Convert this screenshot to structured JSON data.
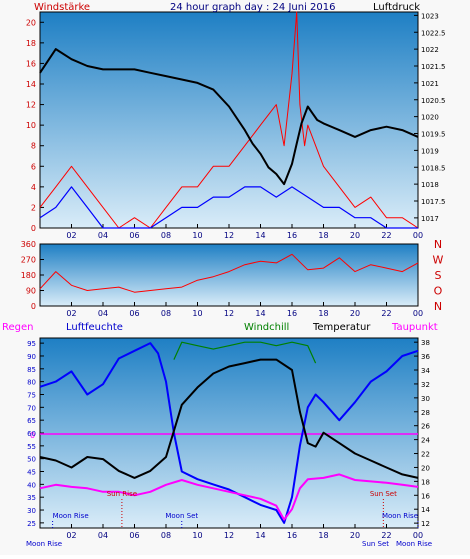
{
  "colors": {
    "panel_top": "#1e7fc4",
    "panel_bottom": "#d9ecf8",
    "wind_red": "#ff0000",
    "wind_blue": "#0000ff",
    "pressure_black": "#000000",
    "humidity_blue": "#0000ff",
    "temperature_black": "#000000",
    "dewpoint_magenta": "#ff00ff",
    "windchill_green": "#008000",
    "moon_label": "#0000cc",
    "sun_label": "#cc0000"
  },
  "header": {
    "left_title": "Windstärke",
    "center_title": "24 hour graph day : 24 Juni 2016",
    "right_title": "Luftdruck"
  },
  "chart_data": [
    {
      "type": "line",
      "panel": "wind-pressure",
      "x_ticks": [
        "02",
        "04",
        "06",
        "08",
        "10",
        "12",
        "14",
        "16",
        "18",
        "20",
        "22",
        "00"
      ],
      "y_left_ticks": [
        "0",
        "2",
        "4",
        "6",
        "8",
        "10",
        "12",
        "14",
        "16",
        "18",
        "20"
      ],
      "y_left_range": [
        0,
        21
      ],
      "y_right_ticks": [
        "1017",
        "1017.5",
        "1018",
        "1018.5",
        "1019",
        "1019.5",
        "1020",
        "1020.5",
        "1021",
        "1021.5",
        "1022",
        "1022.5",
        "1023"
      ],
      "y_right_range": [
        1016.7,
        1023.1
      ],
      "series": [
        {
          "name": "Luftdruck",
          "axis": "right",
          "x": [
            0,
            1,
            2,
            3,
            4,
            5,
            6,
            7,
            8,
            9,
            10,
            11,
            12,
            13,
            13.5,
            14,
            14.5,
            15,
            15.5,
            16,
            16.3,
            16.6,
            17,
            17.3,
            17.6,
            18,
            19,
            20,
            21,
            22,
            23,
            24
          ],
          "y": [
            1021.3,
            1022.0,
            1021.7,
            1021.5,
            1021.4,
            1021.4,
            1021.4,
            1021.3,
            1021.2,
            1021.1,
            1021.0,
            1020.8,
            1020.3,
            1019.6,
            1019.2,
            1018.9,
            1018.5,
            1018.3,
            1018.0,
            1018.6,
            1019.2,
            1019.8,
            1020.3,
            1020.1,
            1019.9,
            1019.8,
            1019.6,
            1019.4,
            1019.6,
            1019.7,
            1019.6,
            1019.4
          ]
        },
        {
          "name": "Windstärke",
          "axis": "left",
          "x": [
            0,
            1,
            2,
            3,
            4,
            5,
            6,
            7,
            8,
            9,
            10,
            11,
            12,
            13,
            14,
            15,
            15.5,
            16,
            16.3,
            16.5,
            16.8,
            17,
            18,
            19,
            20,
            21,
            22,
            23,
            24
          ],
          "y": [
            2,
            4,
            6,
            4,
            2,
            0,
            1,
            0,
            2,
            4,
            4,
            6,
            6,
            8,
            10,
            12,
            8,
            15,
            21,
            12,
            8,
            10,
            6,
            4,
            2,
            3,
            1,
            1,
            0
          ]
        },
        {
          "name": "Windböen",
          "axis": "left",
          "x": [
            0,
            1,
            2,
            3,
            4,
            5,
            6,
            7,
            8,
            9,
            10,
            11,
            12,
            13,
            14,
            15,
            16,
            17,
            18,
            19,
            20,
            21,
            22,
            23,
            24
          ],
          "y": [
            1,
            2,
            4,
            2,
            0,
            0,
            0,
            0,
            1,
            2,
            2,
            3,
            3,
            4,
            4,
            3,
            4,
            3,
            2,
            2,
            1,
            1,
            0,
            0,
            0
          ]
        }
      ]
    },
    {
      "type": "line",
      "panel": "wind-direction",
      "x_ticks": [
        "02",
        "04",
        "06",
        "08",
        "10",
        "12",
        "14",
        "16",
        "18",
        "20",
        "22",
        "00"
      ],
      "y_left_ticks": [
        "0",
        "90",
        "180",
        "270",
        "360"
      ],
      "y_range": [
        0,
        360
      ],
      "compass_labels": [
        "N",
        "W",
        "S",
        "O",
        "N"
      ],
      "series": [
        {
          "name": "Windrichtung",
          "x": [
            0,
            1,
            2,
            3,
            4,
            5,
            6,
            7,
            8,
            9,
            10,
            11,
            12,
            13,
            14,
            15,
            16,
            17,
            18,
            19,
            20,
            21,
            22,
            23,
            24
          ],
          "y": [
            100,
            200,
            120,
            90,
            100,
            110,
            80,
            90,
            100,
            110,
            150,
            170,
            200,
            240,
            260,
            250,
            300,
            210,
            220,
            280,
            200,
            240,
            220,
            200,
            250
          ]
        }
      ]
    },
    {
      "type": "line",
      "panel": "temperature-humidity",
      "header_labels": {
        "regen": "Regen",
        "luftfeuchte": "Luftfeuchte",
        "windchill": "Windchill",
        "temperatur": "Temperatur",
        "taupunkt": "Taupunkt"
      },
      "x_ticks": [
        "02",
        "04",
        "06",
        "08",
        "10",
        "12",
        "14",
        "16",
        "18",
        "20",
        "22",
        "00"
      ],
      "y_left_ticks": [
        "25",
        "30",
        "35",
        "40",
        "45",
        "50",
        "55",
        "60",
        "65",
        "70",
        "75",
        "80",
        "85",
        "90",
        "95"
      ],
      "y_left_range": [
        23,
        97
      ],
      "y_right_ticks": [
        "12",
        "14",
        "16",
        "18",
        "20",
        "22",
        "24",
        "26",
        "28",
        "30",
        "32",
        "34",
        "36",
        "38"
      ],
      "y_right_range": [
        11.3,
        38.6
      ],
      "rain_value_label": "0",
      "series": [
        {
          "name": "Luftfeuchte",
          "axis": "left",
          "x": [
            0,
            1,
            2,
            3,
            4,
            5,
            6,
            7,
            7.5,
            8,
            8.5,
            9,
            10,
            11,
            12,
            13,
            14,
            15,
            15.5,
            16,
            16.5,
            17,
            17.5,
            18,
            19,
            20,
            21,
            22,
            23,
            24
          ],
          "y": [
            78,
            80,
            84,
            75,
            79,
            89,
            92,
            95,
            91,
            80,
            60,
            45,
            42,
            40,
            38,
            35,
            32,
            30,
            25,
            35,
            55,
            70,
            75,
            72,
            65,
            72,
            80,
            84,
            90,
            92
          ]
        },
        {
          "name": "Temperatur",
          "axis": "right",
          "x": [
            0,
            1,
            2,
            3,
            4,
            5,
            6,
            7,
            8,
            9,
            10,
            11,
            12,
            13,
            14,
            15,
            16,
            16.5,
            17,
            17.5,
            18,
            19,
            20,
            21,
            22,
            23,
            24
          ],
          "y": [
            21.5,
            21,
            20,
            21.5,
            21.2,
            19.5,
            18.5,
            19.5,
            21.5,
            29,
            31.5,
            33.5,
            34.5,
            35,
            35.5,
            35.5,
            34,
            28,
            23.5,
            23,
            25,
            23.5,
            22,
            21,
            20,
            19,
            18.5
          ]
        },
        {
          "name": "Taupunkt",
          "axis": "right",
          "x": [
            0,
            1,
            2,
            3,
            4,
            5,
            6,
            7,
            8,
            9,
            10,
            11,
            12,
            13,
            14,
            15,
            15.5,
            16,
            16.5,
            17,
            18,
            19,
            20,
            21,
            22,
            23,
            24
          ],
          "y": [
            17,
            17.5,
            17.2,
            17,
            16.5,
            16.5,
            16,
            16.5,
            17.5,
            18.2,
            17.5,
            17,
            16.5,
            16,
            15.5,
            14.5,
            12.5,
            14,
            17,
            18.3,
            18.5,
            19,
            18.2,
            18,
            17.8,
            17.5,
            17.2
          ]
        },
        {
          "name": "Windchill",
          "axis": "right",
          "x": [
            8.5,
            9,
            10,
            11,
            12,
            13,
            14,
            15,
            16,
            17,
            17.5
          ],
          "y": [
            35.5,
            38,
            37.5,
            37,
            37.5,
            38,
            38,
            37.5,
            38,
            37.5,
            35
          ]
        }
      ],
      "events": [
        {
          "label": "Moon Rise",
          "row": "upper",
          "time": 0.8
        },
        {
          "label": "Sun Rise",
          "row": "middle",
          "time": 5.2
        },
        {
          "label": "Moon Set",
          "row": "upper",
          "time": 9.0
        },
        {
          "label": "Sun Set",
          "row": "middle",
          "time": 21.8
        },
        {
          "label": "Moon Rise",
          "row": "upper",
          "time": 24.0
        }
      ],
      "bottom_labels": [
        "Moon Rise",
        "Sun Set",
        "Moon Rise"
      ]
    }
  ]
}
